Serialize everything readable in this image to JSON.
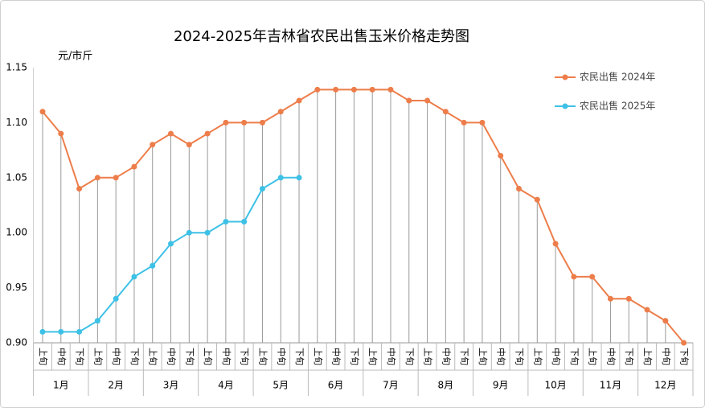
{
  "chart_data": {
    "type": "line",
    "title": "2024-2025年吉林省农民出售玉米价格走势图",
    "y_label": "元/市斤",
    "categories": [
      "上旬",
      "中旬",
      "下旬",
      "上旬",
      "中旬",
      "下旬",
      "上旬",
      "中旬",
      "下旬",
      "上旬",
      "中旬",
      "下旬",
      "上旬",
      "中旬",
      "下旬",
      "上旬",
      "中旬",
      "下旬",
      "上旬",
      "中旬",
      "下旬",
      "上旬",
      "中旬",
      "下旬",
      "上旬",
      "中旬",
      "下旬",
      "上旬",
      "中旬",
      "下旬",
      "上旬",
      "中旬",
      "下旬",
      "上旬",
      "中旬",
      "下旬"
    ],
    "groups": [
      "1月",
      "2月",
      "3月",
      "4月",
      "5月",
      "6月",
      "7月",
      "8月",
      "9月",
      "10月",
      "11月",
      "12月"
    ],
    "series": [
      {
        "name": "农民出售 2024年",
        "color": "#ED7D4A",
        "values": [
          1.11,
          1.09,
          1.04,
          1.05,
          1.05,
          1.06,
          1.08,
          1.09,
          1.08,
          1.09,
          1.1,
          1.1,
          1.1,
          1.11,
          1.12,
          1.13,
          1.13,
          1.13,
          1.13,
          1.13,
          1.12,
          1.12,
          1.11,
          1.1,
          1.1,
          1.07,
          1.04,
          1.03,
          0.99,
          0.96,
          0.96,
          0.94,
          0.94,
          0.93,
          0.92,
          0.9
        ]
      },
      {
        "name": "农民出售 2025年",
        "color": "#3EC1E6",
        "values": [
          0.91,
          0.91,
          0.91,
          0.92,
          0.94,
          0.96,
          0.97,
          0.99,
          1.0,
          1.0,
          1.01,
          1.01,
          1.04,
          1.05,
          1.05,
          null,
          null,
          null,
          null,
          null,
          null,
          null,
          null,
          null,
          null,
          null,
          null,
          null,
          null,
          null,
          null,
          null,
          null,
          null,
          null,
          null
        ]
      }
    ],
    "ylim": [
      0.9,
      1.15
    ],
    "yticks": [
      {
        "value": 0.9,
        "label": "0.90"
      },
      {
        "value": 0.95,
        "label": "0.95"
      },
      {
        "value": 1.0,
        "label": "1.00"
      },
      {
        "value": 1.05,
        "label": "1.05"
      },
      {
        "value": 1.1,
        "label": "1.10"
      },
      {
        "value": 1.15,
        "label": "1.15"
      }
    ],
    "drop_lines": true,
    "legend": "top-right"
  }
}
